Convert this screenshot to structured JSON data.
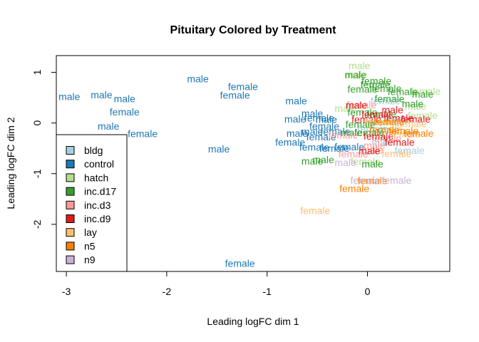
{
  "chart_data": {
    "type": "scatter",
    "title": "Pituitary Colored by Treatment",
    "xlabel": "Leading logFC dim 1",
    "ylabel": "Leading logFC dim 2",
    "xlim": [
      -3.1,
      0.82
    ],
    "ylim": [
      -2.93,
      1.33
    ],
    "xticks": [
      -3,
      -2,
      -1,
      0
    ],
    "yticks": [
      -2,
      -1,
      0,
      1
    ],
    "legend": {
      "position": "bottom-left",
      "items": [
        {
          "label": "bldg",
          "color": "#A6CEE3"
        },
        {
          "label": "control",
          "color": "#1F78B4"
        },
        {
          "label": "hatch",
          "color": "#B2DF8A"
        },
        {
          "label": "inc.d17",
          "color": "#33A02C"
        },
        {
          "label": "inc.d3",
          "color": "#FB9A99"
        },
        {
          "label": "inc.d9",
          "color": "#E31A1C"
        },
        {
          "label": "lay",
          "color": "#FDBF6F"
        },
        {
          "label": "n5",
          "color": "#FF7F00"
        },
        {
          "label": "n9",
          "color": "#CAB2D6"
        }
      ]
    },
    "series": [
      {
        "name": "control",
        "color": "#1F78B4",
        "points": [
          {
            "x": -2.97,
            "y": 0.52,
            "label": "male"
          },
          {
            "x": -2.65,
            "y": 0.56,
            "label": "male"
          },
          {
            "x": -2.42,
            "y": 0.48,
            "label": "male"
          },
          {
            "x": -2.42,
            "y": 0.22,
            "label": "female"
          },
          {
            "x": -2.58,
            "y": -0.06,
            "label": "male"
          },
          {
            "x": -2.24,
            "y": -0.21,
            "label": "female"
          },
          {
            "x": -1.69,
            "y": 0.87,
            "label": "male"
          },
          {
            "x": -1.24,
            "y": 0.72,
            "label": "female"
          },
          {
            "x": -1.32,
            "y": 0.55,
            "label": "female"
          },
          {
            "x": -1.48,
            "y": -0.51,
            "label": "male"
          },
          {
            "x": -0.71,
            "y": 0.44,
            "label": "male"
          },
          {
            "x": -0.55,
            "y": 0.19,
            "label": "male"
          },
          {
            "x": -0.72,
            "y": 0.08,
            "label": "male"
          },
          {
            "x": -0.48,
            "y": 0.1,
            "label": "female"
          },
          {
            "x": -0.7,
            "y": -0.2,
            "label": "male"
          },
          {
            "x": -0.55,
            "y": -0.17,
            "label": "male"
          },
          {
            "x": -0.77,
            "y": -0.38,
            "label": "female"
          },
          {
            "x": -0.43,
            "y": -0.06,
            "label": "female"
          },
          {
            "x": -0.41,
            "y": 0.07,
            "label": "male"
          },
          {
            "x": -0.46,
            "y": -0.27,
            "label": "female"
          },
          {
            "x": -0.32,
            "y": -0.17,
            "label": "female"
          },
          {
            "x": -0.53,
            "y": -0.48,
            "label": "female"
          },
          {
            "x": -0.33,
            "y": -0.5,
            "label": "female"
          },
          {
            "x": -0.18,
            "y": -0.47,
            "label": "female"
          },
          {
            "x": -1.27,
            "y": -2.77,
            "label": "female"
          }
        ]
      },
      {
        "name": "bldg",
        "color": "#A6CEE3",
        "points": [
          {
            "x": 0.42,
            "y": -0.54,
            "label": "female"
          },
          {
            "x": 0.18,
            "y": 0.44,
            "label": "female"
          },
          {
            "x": 0.28,
            "y": 0.05,
            "label": "male"
          },
          {
            "x": 0.05,
            "y": -0.11,
            "label": "female"
          },
          {
            "x": 0.15,
            "y": -0.38,
            "label": "male"
          }
        ]
      },
      {
        "name": "hatch",
        "color": "#B2DF8A",
        "points": [
          {
            "x": -0.08,
            "y": 1.13,
            "label": "male"
          },
          {
            "x": -0.11,
            "y": 0.96,
            "label": "male"
          },
          {
            "x": 0.58,
            "y": 0.63,
            "label": "female"
          },
          {
            "x": 0.48,
            "y": 0.33,
            "label": "male"
          },
          {
            "x": -0.22,
            "y": 0.29,
            "label": "male"
          },
          {
            "x": 0.55,
            "y": 0.15,
            "label": "female"
          },
          {
            "x": 0.12,
            "y": 0.02,
            "label": "female"
          },
          {
            "x": -0.02,
            "y": -0.76,
            "label": "female"
          },
          {
            "x": 0.24,
            "y": -0.12,
            "label": "male"
          }
        ]
      },
      {
        "name": "inc.d17",
        "color": "#33A02C",
        "points": [
          {
            "x": -0.12,
            "y": 0.95,
            "label": "male"
          },
          {
            "x": 0.09,
            "y": 0.83,
            "label": "female"
          },
          {
            "x": -0.05,
            "y": 0.67,
            "label": "female"
          },
          {
            "x": 0.08,
            "y": 0.76,
            "label": "female"
          },
          {
            "x": 0.35,
            "y": 0.62,
            "label": "female"
          },
          {
            "x": 0.19,
            "y": 0.68,
            "label": "female"
          },
          {
            "x": 0.55,
            "y": 0.57,
            "label": "male"
          },
          {
            "x": 0.22,
            "y": 0.48,
            "label": "female"
          },
          {
            "x": 0.45,
            "y": 0.38,
            "label": "male"
          },
          {
            "x": -0.05,
            "y": 0.21,
            "label": "female"
          },
          {
            "x": 0.14,
            "y": 0.18,
            "label": "female"
          },
          {
            "x": -0.16,
            "y": -0.19,
            "label": "male"
          },
          {
            "x": -0.07,
            "y": -0.03,
            "label": "female"
          },
          {
            "x": 0.02,
            "y": -0.19,
            "label": "female"
          },
          {
            "x": -0.55,
            "y": -0.75,
            "label": "male"
          },
          {
            "x": -0.44,
            "y": -0.72,
            "label": "male"
          },
          {
            "x": 0.05,
            "y": -0.81,
            "label": "male"
          }
        ]
      },
      {
        "name": "inc.d3",
        "color": "#FB9A99",
        "points": [
          {
            "x": -0.24,
            "y": -0.24,
            "label": "female"
          },
          {
            "x": 0.05,
            "y": -0.53,
            "label": "male"
          },
          {
            "x": -0.14,
            "y": -0.61,
            "label": "female"
          },
          {
            "x": 0.19,
            "y": -0.31,
            "label": "female"
          },
          {
            "x": 0.07,
            "y": -0.44,
            "label": "male"
          },
          {
            "x": -0.06,
            "y": 0.36,
            "label": "female"
          }
        ]
      },
      {
        "name": "inc.d9",
        "color": "#E31A1C",
        "points": [
          {
            "x": -0.11,
            "y": 0.35,
            "label": "male"
          },
          {
            "x": -0.01,
            "y": 0.07,
            "label": "female"
          },
          {
            "x": 0.09,
            "y": 0.17,
            "label": "female"
          },
          {
            "x": 0.25,
            "y": 0.26,
            "label": "male"
          },
          {
            "x": 0.31,
            "y": 0.1,
            "label": "female"
          },
          {
            "x": 0.48,
            "y": 0.08,
            "label": "female"
          },
          {
            "x": 0.32,
            "y": -0.38,
            "label": "female"
          },
          {
            "x": 0.02,
            "y": -0.55,
            "label": "male"
          },
          {
            "x": 0.11,
            "y": -0.26,
            "label": "female"
          }
        ]
      },
      {
        "name": "lay",
        "color": "#FDBF6F",
        "points": [
          {
            "x": -0.52,
            "y": -1.73,
            "label": "female"
          },
          {
            "x": 0.44,
            "y": -0.01,
            "label": "female"
          },
          {
            "x": 0.29,
            "y": -0.6,
            "label": "female"
          },
          {
            "x": 0.13,
            "y": 0.04,
            "label": "female"
          },
          {
            "x": 0.38,
            "y": -0.22,
            "label": "female"
          }
        ]
      },
      {
        "name": "n5",
        "color": "#FF7F00",
        "points": [
          {
            "x": -0.13,
            "y": -1.29,
            "label": "female"
          },
          {
            "x": 0.05,
            "y": -1.14,
            "label": "female"
          },
          {
            "x": 0.51,
            "y": -0.2,
            "label": "female"
          },
          {
            "x": 0.36,
            "y": -0.15,
            "label": "female"
          },
          {
            "x": 0.17,
            "y": -0.13,
            "label": "female"
          },
          {
            "x": 0.22,
            "y": 0.02,
            "label": "female"
          }
        ]
      },
      {
        "name": "n9",
        "color": "#CAB2D6",
        "points": [
          {
            "x": -0.02,
            "y": -1.13,
            "label": "female"
          },
          {
            "x": 0.29,
            "y": -1.13,
            "label": "female"
          },
          {
            "x": -0.22,
            "y": -0.78,
            "label": "male"
          }
        ]
      }
    ]
  }
}
